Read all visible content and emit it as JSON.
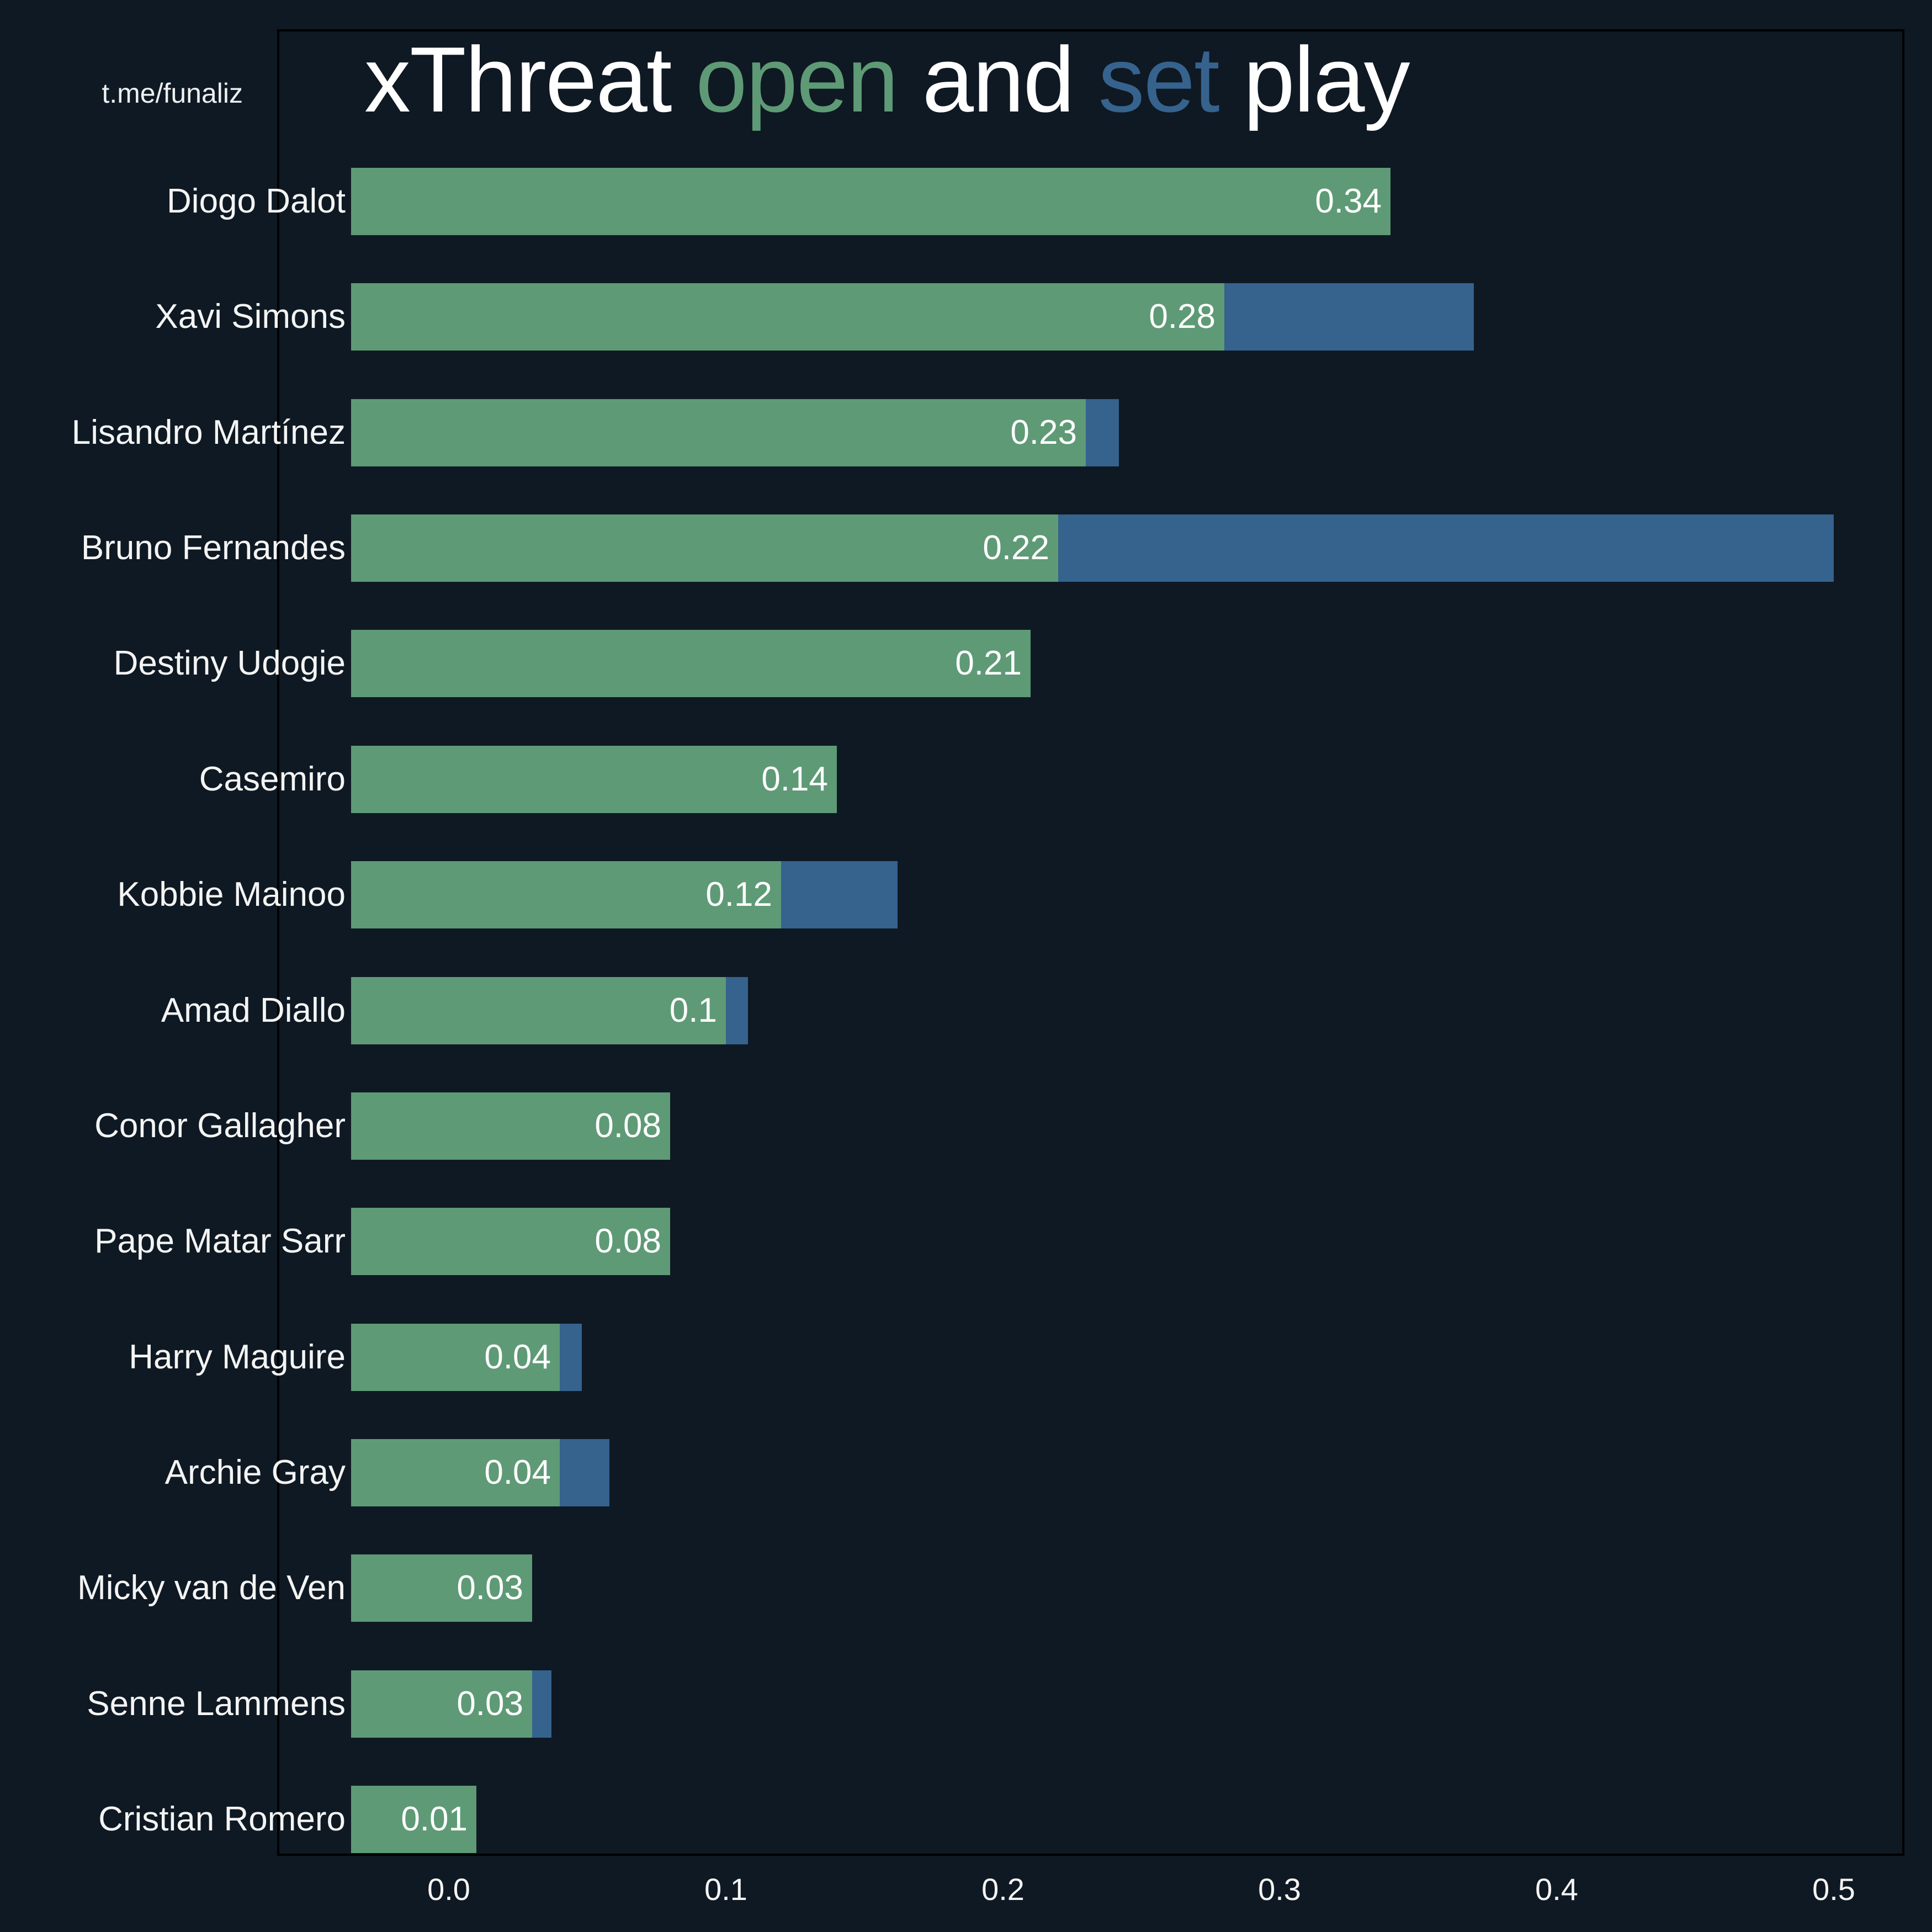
{
  "watermark": "t.me/funaliz",
  "title": {
    "full": "xThreat open and set play",
    "parts": [
      {
        "text": "xThreat ",
        "color": "#ffffff"
      },
      {
        "text": "open",
        "color": "#5e9a76"
      },
      {
        "text": " and ",
        "color": "#ffffff"
      },
      {
        "text": "set",
        "color": "#36628e"
      },
      {
        "text": " play",
        "color": "#ffffff"
      }
    ]
  },
  "colors": {
    "background": "#0f1923",
    "open_play": "#5e9a76",
    "set_play": "#36628e",
    "spine": "#000000",
    "text": "#f4f4f4"
  },
  "chart_data": {
    "type": "bar",
    "orientation": "horizontal",
    "stacked": true,
    "title": "xThreat open and set play",
    "series": [
      {
        "name": "open play",
        "color": "#5e9a76"
      },
      {
        "name": "set play",
        "color": "#36628e"
      }
    ],
    "players": [
      {
        "name": "Diogo Dalot",
        "open": 0.34,
        "set": 0,
        "label": "0.34"
      },
      {
        "name": "Xavi Simons",
        "open": 0.28,
        "set": 0.09,
        "label": "0.28"
      },
      {
        "name": "Lisandro Martínez",
        "open": 0.23,
        "set": 0.012,
        "label": "0.23"
      },
      {
        "name": "Bruno Fernandes",
        "open": 0.22,
        "set": 0.28,
        "label": "0.22"
      },
      {
        "name": "Destiny Udogie",
        "open": 0.21,
        "set": 0,
        "label": "0.21"
      },
      {
        "name": "Casemiro",
        "open": 0.14,
        "set": 0,
        "label": "0.14"
      },
      {
        "name": "Kobbie Mainoo",
        "open": 0.12,
        "set": 0.042,
        "label": "0.12"
      },
      {
        "name": "Amad Diallo",
        "open": 0.1,
        "set": 0.008,
        "label": "0.1"
      },
      {
        "name": "Conor Gallagher",
        "open": 0.08,
        "set": 0,
        "label": "0.08"
      },
      {
        "name": "Pape Matar Sarr",
        "open": 0.08,
        "set": 0,
        "label": "0.08"
      },
      {
        "name": "Harry Maguire",
        "open": 0.04,
        "set": 0.008,
        "label": "0.04"
      },
      {
        "name": "Archie Gray",
        "open": 0.04,
        "set": 0.018,
        "label": "0.04"
      },
      {
        "name": "Micky van de Ven",
        "open": 0.03,
        "set": 0,
        "label": "0.03"
      },
      {
        "name": "Senne Lammens",
        "open": 0.03,
        "set": 0.007,
        "label": "0.03"
      },
      {
        "name": "Cristian Romero",
        "open": 0.01,
        "set": 0,
        "label": "0.01"
      }
    ],
    "x_axis": {
      "ticks": [
        {
          "label": "0.0",
          "value": 0.0
        },
        {
          "label": "0.1",
          "value": 0.1
        },
        {
          "label": "0.2",
          "value": 0.2
        },
        {
          "label": "0.3",
          "value": 0.3
        },
        {
          "label": "0.4",
          "value": 0.4
        },
        {
          "label": "0.5",
          "value": 0.5
        }
      ],
      "range": [
        -0.062,
        0.525
      ],
      "grid": false,
      "legend_position": "none (colors encoded in title words)"
    }
  }
}
